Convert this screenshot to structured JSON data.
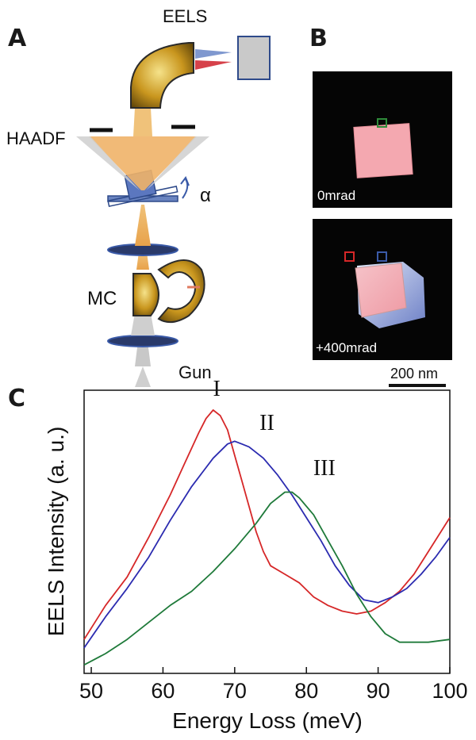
{
  "panels": {
    "a": "A",
    "b": "B",
    "c": "C"
  },
  "diagram": {
    "eels": "EELS",
    "haadf": "HAADF",
    "alpha": "α",
    "mc": "MC",
    "gun": "Gun"
  },
  "images": {
    "top_label": "0mrad",
    "bottom_label": "+400mrad",
    "scale_bar": "200 nm"
  },
  "chart_data": {
    "type": "line",
    "title": "",
    "xlabel": "Energy Loss (meV)",
    "ylabel": "EELS Intensity (a. u.)",
    "xlim": [
      49,
      100
    ],
    "ylim": [
      0,
      1
    ],
    "xticks": [
      50,
      60,
      70,
      80,
      90,
      100
    ],
    "grid": false,
    "y_tick_labels": false,
    "series": [
      {
        "name": "I",
        "color": "#d62728",
        "x": [
          49,
          52,
          55,
          58,
          61,
          63,
          65,
          66,
          67,
          68,
          69,
          70,
          71,
          72,
          73,
          74,
          75,
          77,
          79,
          81,
          83,
          85,
          87,
          89,
          91,
          93,
          95,
          97,
          99,
          100
        ],
        "y": [
          0.12,
          0.24,
          0.34,
          0.48,
          0.63,
          0.74,
          0.85,
          0.9,
          0.93,
          0.91,
          0.86,
          0.77,
          0.68,
          0.59,
          0.5,
          0.43,
          0.38,
          0.35,
          0.32,
          0.27,
          0.24,
          0.22,
          0.21,
          0.22,
          0.25,
          0.29,
          0.35,
          0.43,
          0.51,
          0.55
        ]
      },
      {
        "name": "II",
        "color": "#2b2bb0",
        "x": [
          49,
          52,
          55,
          58,
          61,
          64,
          67,
          69,
          70,
          71,
          72,
          74,
          76,
          78,
          80,
          82,
          84,
          86,
          88,
          90,
          92,
          94,
          96,
          98,
          100
        ],
        "y": [
          0.09,
          0.2,
          0.3,
          0.41,
          0.54,
          0.66,
          0.76,
          0.81,
          0.82,
          0.81,
          0.8,
          0.76,
          0.7,
          0.63,
          0.55,
          0.47,
          0.38,
          0.31,
          0.26,
          0.25,
          0.27,
          0.3,
          0.35,
          0.41,
          0.48
        ]
      },
      {
        "name": "III",
        "color": "#1f7a3a",
        "x": [
          49,
          52,
          55,
          58,
          61,
          64,
          67,
          70,
          73,
          75,
          77,
          78,
          79,
          81,
          83,
          85,
          87,
          89,
          91,
          93,
          95,
          97,
          100
        ],
        "y": [
          0.03,
          0.07,
          0.12,
          0.18,
          0.24,
          0.29,
          0.36,
          0.44,
          0.53,
          0.6,
          0.64,
          0.64,
          0.62,
          0.56,
          0.47,
          0.38,
          0.28,
          0.2,
          0.14,
          0.11,
          0.11,
          0.11,
          0.12
        ]
      }
    ],
    "annotations": [
      {
        "text": "I",
        "x": 67.5,
        "y": 0.98
      },
      {
        "text": "II",
        "x": 74.5,
        "y": 0.86
      },
      {
        "text": "III",
        "x": 82.5,
        "y": 0.7
      }
    ]
  }
}
